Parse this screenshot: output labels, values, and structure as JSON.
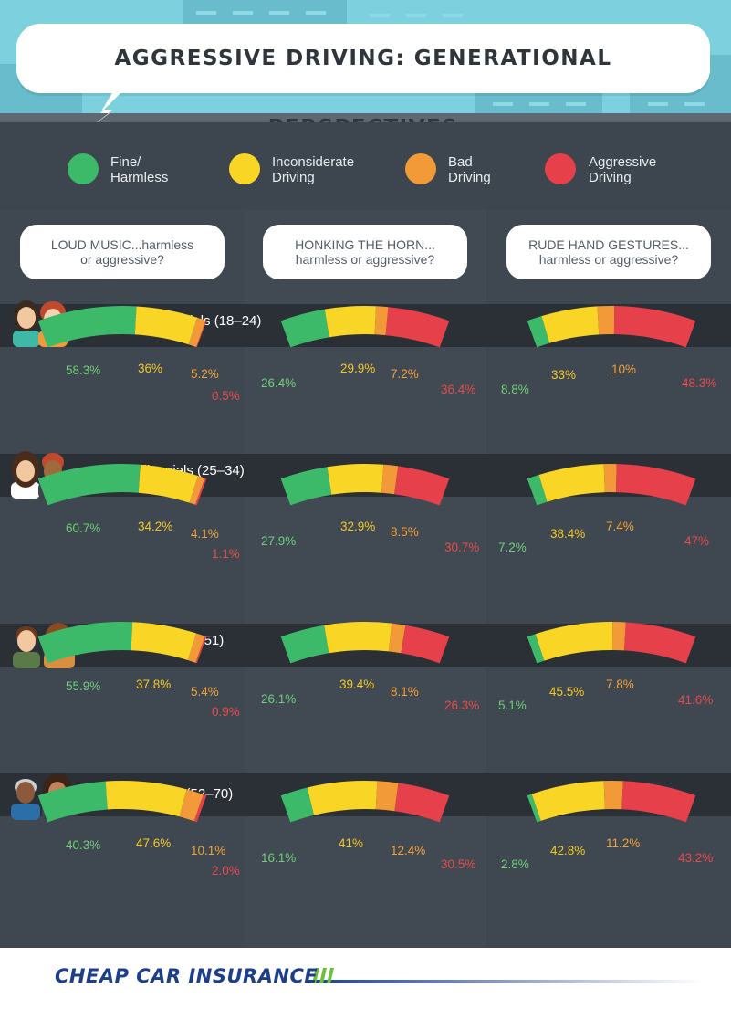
{
  "title": "AGGRESSIVE DRIVING: GENERATIONAL PERSPECTIVES",
  "legend": [
    {
      "label": "Fine/\nHarmless",
      "color": "#3cba6a"
    },
    {
      "label": "Inconsiderate\nDriving",
      "color": "#f9d626"
    },
    {
      "label": "Bad\nDriving",
      "color": "#f29a38"
    },
    {
      "label": "Aggressive\nDriving",
      "color": "#e6404a"
    }
  ],
  "questions": [
    "LOUD MUSIC...harmless\nor aggressive?",
    "HONKING THE HORN...\nharmless or aggressive?",
    "RUDE HAND GESTURES...\nharmless or aggressive?"
  ],
  "generations": [
    {
      "label": "Younger Millennials (18–24)"
    },
    {
      "label": "Older Millennials (25–34)"
    },
    {
      "label": "Generation X (35–51)"
    },
    {
      "label": "Baby Boomers (52–70)"
    }
  ],
  "chart_data": {
    "type": "gauge",
    "categories": [
      "Fine/Harmless",
      "Inconsiderate Driving",
      "Bad Driving",
      "Aggressive Driving"
    ],
    "colors": [
      "#3cba6a",
      "#f9d626",
      "#f29a38",
      "#e6404a"
    ],
    "panels": [
      {
        "generation": "Younger Millennials (18–24)",
        "question": "LOUD MUSIC",
        "values": [
          58.3,
          36,
          5.2,
          0.5
        ],
        "labels": [
          "58.3%",
          "36%",
          "5.2%",
          "0.5%"
        ]
      },
      {
        "generation": "Younger Millennials (18–24)",
        "question": "HONKING THE HORN",
        "values": [
          26.4,
          29.9,
          7.2,
          36.4
        ],
        "labels": [
          "26.4%",
          "29.9%",
          "7.2%",
          "36.4%"
        ]
      },
      {
        "generation": "Younger Millennials (18–24)",
        "question": "RUDE HAND GESTURES",
        "values": [
          8.8,
          33,
          10,
          48.3
        ],
        "labels": [
          "8.8%",
          "33%",
          "10%",
          "48.3%"
        ]
      },
      {
        "generation": "Older Millennials (25–34)",
        "question": "LOUD MUSIC",
        "values": [
          60.7,
          34.2,
          4.1,
          1.1
        ],
        "labels": [
          "60.7%",
          "34.2%",
          "4.1%",
          "1.1%"
        ]
      },
      {
        "generation": "Older Millennials (25–34)",
        "question": "HONKING THE HORN",
        "values": [
          27.9,
          32.9,
          8.5,
          30.7
        ],
        "labels": [
          "27.9%",
          "32.9%",
          "8.5%",
          "30.7%"
        ]
      },
      {
        "generation": "Older Millennials (25–34)",
        "question": "RUDE HAND GESTURES",
        "values": [
          7.2,
          38.4,
          7.4,
          47
        ],
        "labels": [
          "7.2%",
          "38.4%",
          "7.4%",
          "47%"
        ]
      },
      {
        "generation": "Generation X (35–51)",
        "question": "LOUD MUSIC",
        "values": [
          55.9,
          37.8,
          5.4,
          0.9
        ],
        "labels": [
          "55.9%",
          "37.8%",
          "5.4%",
          "0.9%"
        ]
      },
      {
        "generation": "Generation X (35–51)",
        "question": "HONKING THE HORN",
        "values": [
          26.1,
          39.4,
          8.1,
          26.3
        ],
        "labels": [
          "26.1%",
          "39.4%",
          "8.1%",
          "26.3%"
        ]
      },
      {
        "generation": "Generation X (35–51)",
        "question": "RUDE HAND GESTURES",
        "values": [
          5.1,
          45.5,
          7.8,
          41.6
        ],
        "labels": [
          "5.1%",
          "45.5%",
          "7.8%",
          "41.6%"
        ]
      },
      {
        "generation": "Baby Boomers (52–70)",
        "question": "LOUD MUSIC",
        "values": [
          40.3,
          47.6,
          10.1,
          2.0
        ],
        "labels": [
          "40.3%",
          "47.6%",
          "10.1%",
          "2.0%"
        ]
      },
      {
        "generation": "Baby Boomers (52–70)",
        "question": "HONKING THE HORN",
        "values": [
          16.1,
          41,
          12.4,
          30.5
        ],
        "labels": [
          "16.1%",
          "41%",
          "12.4%",
          "30.5%"
        ]
      },
      {
        "generation": "Baby Boomers (52–70)",
        "question": "RUDE HAND GESTURES",
        "values": [
          2.8,
          42.8,
          11.2,
          43.2
        ],
        "labels": [
          "2.8%",
          "42.8%",
          "11.2%",
          "43.2%"
        ]
      }
    ]
  },
  "footer": {
    "logo_text": "CHEAP CAR INSURANCE"
  }
}
